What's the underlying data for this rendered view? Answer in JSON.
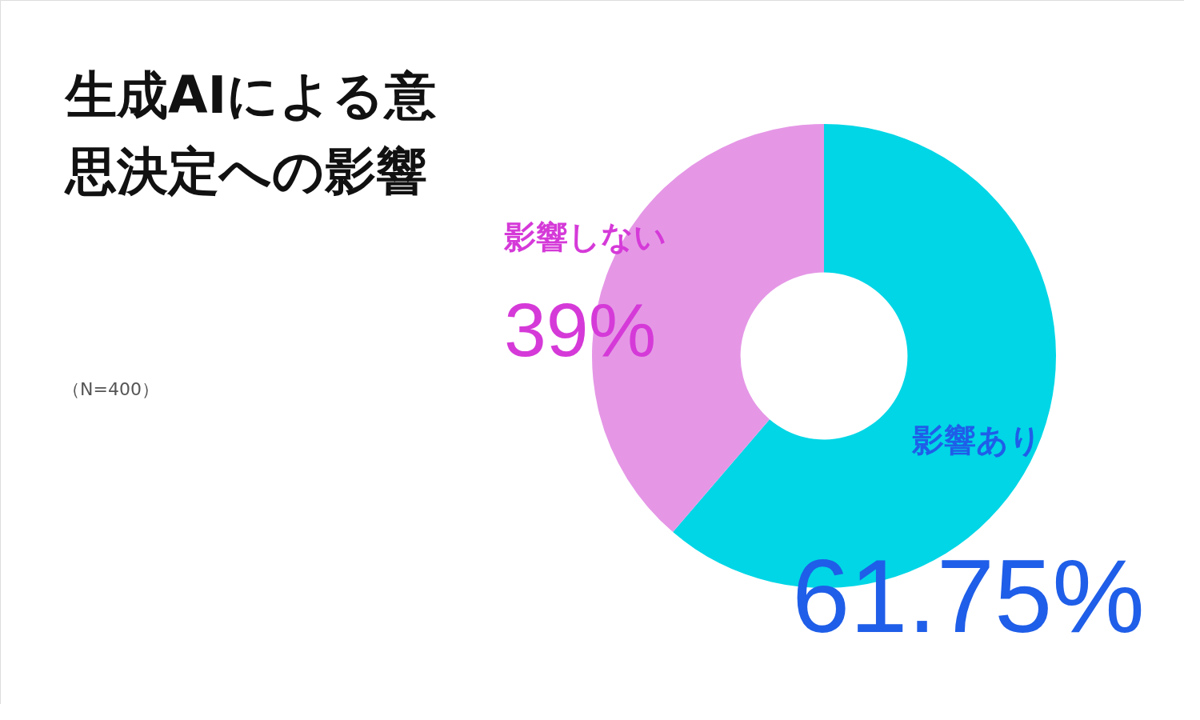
{
  "chart_data": {
    "type": "donut",
    "title": "生成AIによる意思決定への影響",
    "categories": [
      "影響あり",
      "影響しない"
    ],
    "values": [
      61.75,
      39
    ],
    "colors": [
      "#00d6e6",
      "#e597e6"
    ],
    "value_labels": [
      "61.75%",
      "39%"
    ],
    "annotations": [
      "（N=400）"
    ],
    "legend": false
  }
}
